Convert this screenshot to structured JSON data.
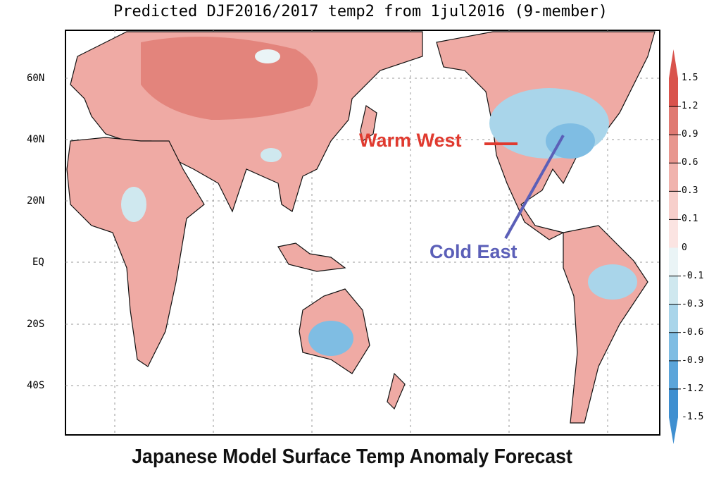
{
  "title": "Predicted DJF2016/2017 temp2 from 1jul2016 (9-member)",
  "caption": "Japanese Model Surface Temp Anomaly Forecast",
  "latitude_labels": [
    "60N",
    "40N",
    "20N",
    "EQ",
    "20S",
    "40S"
  ],
  "colorbar": {
    "labels": [
      "1.5",
      "1.2",
      "0.9",
      "0.6",
      "0.3",
      "0.1",
      "0",
      "-0.1",
      "-0.3",
      "-0.6",
      "-0.9",
      "-1.2",
      "-1.5"
    ],
    "colors": [
      "#d9534c",
      "#e07a72",
      "#e8978f",
      "#f0b3ad",
      "#f7cfcb",
      "#fbe4e2",
      "#eaf4f6",
      "#cfe8ef",
      "#a9d5ea",
      "#7fbde3",
      "#5ba5da",
      "#3f8fd0"
    ]
  },
  "annotations": {
    "warm": {
      "text": "Warm West",
      "color": "#e03a2f"
    },
    "cold": {
      "text": "Cold East",
      "color": "#5b5fb8"
    }
  }
}
